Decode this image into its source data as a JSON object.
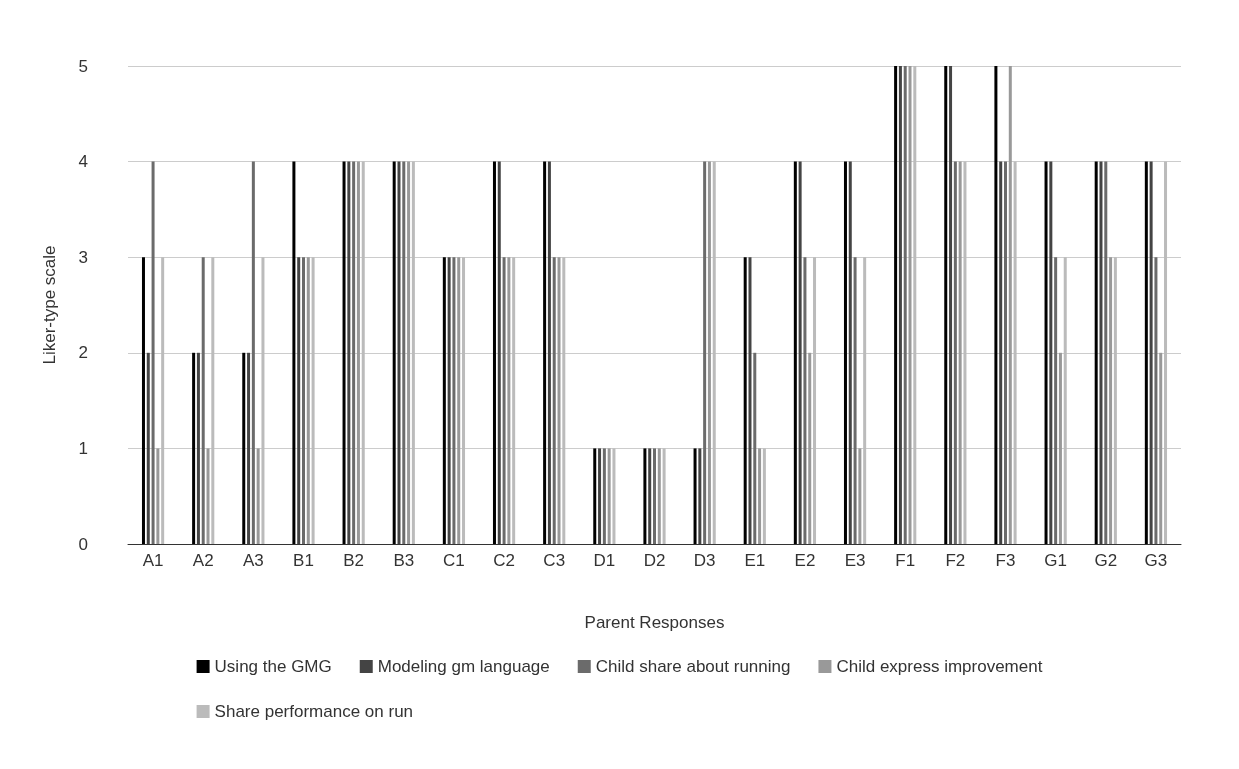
{
  "chart_data": {
    "type": "bar",
    "xlabel": "Parent Responses",
    "ylabel": "Liker-type scale",
    "categories": [
      "A1",
      "A2",
      "A3",
      "B1",
      "B2",
      "B3",
      "C1",
      "C2",
      "C3",
      "D1",
      "D2",
      "D3",
      "E1",
      "E2",
      "E3",
      "F1",
      "F2",
      "F3",
      "G1",
      "G2",
      "G3"
    ],
    "series": [
      {
        "name": "Using the GMG",
        "color": "#000000",
        "values": [
          3,
          2,
          2,
          4,
          4,
          4,
          3,
          4,
          4,
          1,
          1,
          1,
          3,
          4,
          4,
          5,
          5,
          5,
          4,
          4,
          4
        ]
      },
      {
        "name": "Modeling gm language",
        "color": "#444444",
        "values": [
          2,
          2,
          2,
          3,
          4,
          4,
          3,
          4,
          4,
          1,
          1,
          1,
          3,
          4,
          4,
          5,
          5,
          4,
          4,
          4,
          4
        ]
      },
      {
        "name": "Child share about running",
        "color": "#6b6b6b",
        "values": [
          4,
          3,
          4,
          3,
          4,
          4,
          3,
          3,
          3,
          1,
          1,
          4,
          2,
          3,
          3,
          5,
          4,
          4,
          3,
          4,
          3
        ]
      },
      {
        "name": "Child express improvement",
        "color": "#999999",
        "values": [
          1,
          1,
          1,
          3,
          4,
          4,
          3,
          3,
          3,
          1,
          1,
          4,
          1,
          2,
          1,
          5,
          4,
          5,
          2,
          3,
          2
        ]
      },
      {
        "name": "Share performance on run",
        "color": "#bbbbbb",
        "values": [
          3,
          3,
          3,
          3,
          4,
          4,
          3,
          3,
          3,
          1,
          1,
          4,
          1,
          3,
          3,
          5,
          4,
          4,
          3,
          3,
          4
        ]
      }
    ],
    "ylim": [
      0,
      5
    ],
    "yticks": [
      0,
      1,
      2,
      3,
      4,
      5
    ],
    "grid": "y",
    "legend": "bottom"
  }
}
